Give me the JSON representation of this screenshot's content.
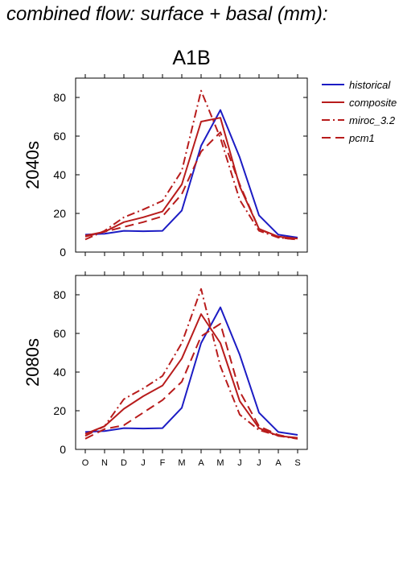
{
  "title": "combined flow: surface + basal (mm):",
  "scenario": "A1B",
  "colors": {
    "historical": "#1c1cc4",
    "models": "#b81c1c"
  },
  "legend": [
    {
      "name": "historical",
      "style": "solid",
      "color": "#1c1cc4"
    },
    {
      "name": "composite",
      "style": "solid",
      "color": "#b81c1c"
    },
    {
      "name": "miroc_3.2",
      "style": "dashdot",
      "color": "#b81c1c"
    },
    {
      "name": "pcm1",
      "style": "dash",
      "color": "#b81c1c"
    }
  ],
  "chart_data": [
    {
      "type": "line",
      "label": "2040s",
      "categories": [
        "O",
        "N",
        "D",
        "J",
        "F",
        "M",
        "A",
        "M",
        "J",
        "J",
        "A",
        "S"
      ],
      "yticks": [
        0,
        20,
        40,
        60,
        80
      ],
      "ylim": [
        0,
        90
      ],
      "series": [
        {
          "name": "historical",
          "style": "solid",
          "color": "#1c1cc4",
          "values": [
            9,
            9.5,
            11,
            10.8,
            11,
            21.5,
            55,
            73.5,
            49,
            19,
            9,
            7.5
          ]
        },
        {
          "name": "composite",
          "style": "solid",
          "color": "#b81c1c",
          "values": [
            8.5,
            10.5,
            15.5,
            18,
            21,
            35,
            67.5,
            69.5,
            34,
            12,
            8,
            7
          ]
        },
        {
          "name": "miroc_3.2",
          "style": "dashdot",
          "color": "#b81c1c",
          "values": [
            6.5,
            11,
            18,
            22,
            26.5,
            42,
            83.5,
            59,
            27,
            11,
            7.5,
            6.5
          ]
        },
        {
          "name": "pcm1",
          "style": "dash",
          "color": "#b81c1c",
          "values": [
            8,
            10.5,
            13,
            15.5,
            18.5,
            30,
            52,
            62,
            35,
            12,
            7.5,
            6.5
          ]
        }
      ]
    },
    {
      "type": "line",
      "label": "2080s",
      "categories": [
        "O",
        "N",
        "D",
        "J",
        "F",
        "M",
        "A",
        "M",
        "J",
        "J",
        "A",
        "S"
      ],
      "yticks": [
        0,
        20,
        40,
        60,
        80
      ],
      "ylim": [
        0,
        90
      ],
      "series": [
        {
          "name": "historical",
          "style": "solid",
          "color": "#1c1cc4",
          "values": [
            9,
            9.5,
            11,
            10.8,
            11,
            21.5,
            55,
            73.5,
            49,
            19,
            9,
            7.5
          ]
        },
        {
          "name": "composite",
          "style": "solid",
          "color": "#b81c1c",
          "values": [
            8,
            12,
            21,
            27.5,
            33,
            47,
            70,
            55,
            25,
            11,
            7,
            6
          ]
        },
        {
          "name": "miroc_3.2",
          "style": "dashdot",
          "color": "#b81c1c",
          "values": [
            7,
            12,
            26,
            31.5,
            38,
            55,
            83,
            43,
            18,
            10,
            7,
            5.5
          ]
        },
        {
          "name": "pcm1",
          "style": "dash",
          "color": "#b81c1c",
          "values": [
            5.5,
            10.5,
            12.5,
            19,
            25.5,
            35,
            58.5,
            65,
            30,
            12,
            7.5,
            5.5
          ]
        }
      ]
    }
  ]
}
